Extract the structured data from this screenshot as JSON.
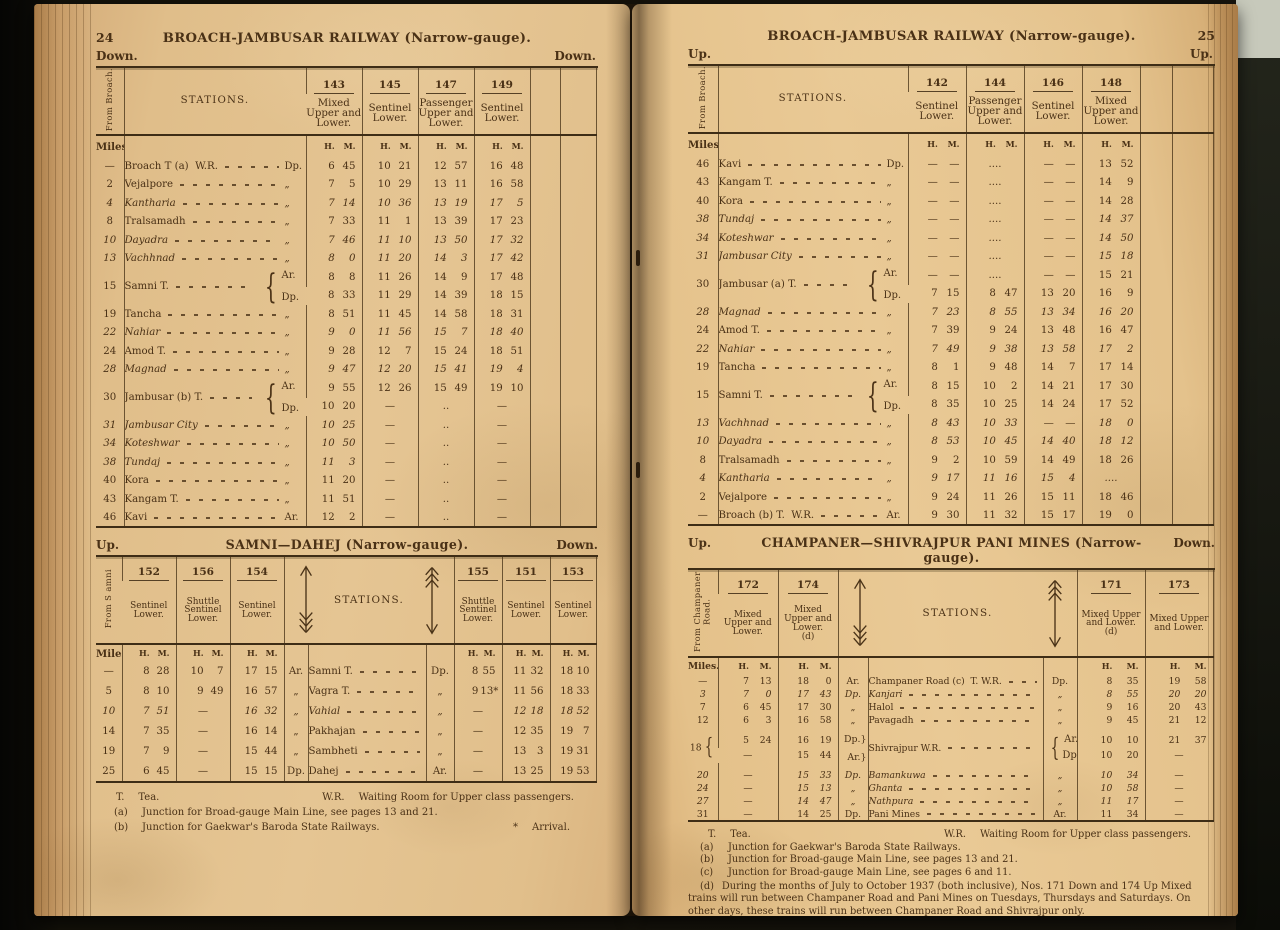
{
  "glyphs": {
    "brace": "{",
    "ditto": "„"
  },
  "left": {
    "page_number": "24",
    "title": "BROACH-JAMBUSAR RAILWAY (Narrow-gauge).",
    "dir_left": "Down.",
    "dir_right": "Down.",
    "main": {
      "corner": "From Broach.",
      "stations_label": "STATIONS.",
      "miles_label": "Miles.",
      "hm": "H. M.",
      "trains": [
        "143",
        "145",
        "147",
        "149"
      ],
      "services": [
        "Mixed Upper and Lower.",
        "Sentinel Lower.",
        "Passenger Upper and Lower.",
        "Sentinel Lower."
      ],
      "rows": [
        {
          "m": "—",
          "s": "Broach T (a)  W.R.",
          "l": "Dp.",
          "t": [
            "6 45",
            "10 21",
            "12 57",
            "16 48"
          ]
        },
        {
          "m": "2",
          "s": "Vejalpore",
          "l": "„",
          "t": [
            "7 5",
            "10 29",
            "13 11",
            "16 58"
          ]
        },
        {
          "m": "4",
          "s": "Kantharia",
          "i": 1,
          "l": "„",
          "t": [
            "7 14",
            "10 36",
            "13 19",
            "17 5"
          ]
        },
        {
          "m": "8",
          "s": "Tralsamadh",
          "l": "„",
          "t": [
            "7 33",
            "11 1",
            "13 39",
            "17 23"
          ]
        },
        {
          "m": "10",
          "s": "Dayadra",
          "i": 1,
          "l": "„",
          "t": [
            "7 46",
            "11 10",
            "13 50",
            "17 32"
          ]
        },
        {
          "m": "13",
          "s": "Vachhnad",
          "i": 1,
          "l": "„",
          "t": [
            "8 0",
            "11 20",
            "14 3",
            "17 42"
          ]
        },
        {
          "m": "15",
          "s": "Samni T.",
          "br": 1,
          "lbls": [
            "Ar.",
            "Dp."
          ],
          "t2": [
            [
              "8 8",
              "11 26",
              "14 9",
              "17 48"
            ],
            [
              "8 33",
              "11 29",
              "14 39",
              "18 15"
            ]
          ]
        },
        {
          "m": "19",
          "s": "Tancha",
          "l": "„",
          "t": [
            "8 51",
            "11 45",
            "14 58",
            "18 31"
          ]
        },
        {
          "m": "22",
          "s": "Nahiar",
          "i": 1,
          "l": "„",
          "t": [
            "9 0",
            "11 56",
            "15 7",
            "18 40"
          ]
        },
        {
          "m": "24",
          "s": "Amod T.",
          "l": "„",
          "t": [
            "9 28",
            "12 7",
            "15 24",
            "18 51"
          ]
        },
        {
          "m": "28",
          "s": "Magnad",
          "i": 1,
          "l": "„",
          "t": [
            "9 47",
            "12 20",
            "15 41",
            "19 4"
          ]
        },
        {
          "m": "30",
          "s": "Jambusar (b) T.",
          "br": 1,
          "lbls": [
            "Ar.",
            "Dp."
          ],
          "t2": [
            [
              "9 55",
              "12 26",
              "15 49",
              "19 10"
            ],
            [
              "10 20",
              "—",
              "..",
              "—"
            ]
          ]
        },
        {
          "m": "31",
          "s": "Jambusar City",
          "i": 1,
          "l": "„",
          "t": [
            "10 25",
            "—",
            "..",
            "—"
          ]
        },
        {
          "m": "34",
          "s": "Koteshwar",
          "i": 1,
          "l": "„",
          "t": [
            "10 50",
            "—",
            "..",
            "—"
          ]
        },
        {
          "m": "38",
          "s": "Tundaj",
          "i": 1,
          "l": "„",
          "t": [
            "11 3",
            "—",
            "..",
            "—"
          ]
        },
        {
          "m": "40",
          "s": "Kora",
          "l": "„",
          "t": [
            "11 20",
            "—",
            "..",
            "—"
          ]
        },
        {
          "m": "43",
          "s": "Kangam T.",
          "l": "„",
          "t": [
            "11 51",
            "—",
            "..",
            "—"
          ]
        },
        {
          "m": "46",
          "s": "Kavi",
          "l": "Ar.",
          "t": [
            "12 2",
            "—",
            "..",
            "—"
          ]
        }
      ]
    },
    "table2": {
      "dir_left": "Up.",
      "title": "SAMNI—DAHEJ (Narrow-gauge).",
      "dir_right": "Down.",
      "corner": "From S amni",
      "stations_label": "STATIONS.",
      "miles_label": "Miles.",
      "hm": "H. M.",
      "trains_left": [
        "152",
        "156",
        "154"
      ],
      "services_left": [
        "Sentinel Lower.",
        "Shuttle Sentinel Lower.",
        "Sentinel Lower."
      ],
      "trains_right": [
        "155",
        "151",
        "153"
      ],
      "services_right": [
        "Shuttle Sentinel Lower.",
        "Sentinel Lower.",
        "Sentinel Lower."
      ],
      "rows": [
        {
          "m": "—",
          "a": "Ar.",
          "s": "Samni T.",
          "d": "Dp.",
          "tl": [
            "8 28",
            "10 7",
            "17 15"
          ],
          "tr": [
            "8 55",
            "11 32",
            "18 10"
          ]
        },
        {
          "m": "5",
          "a": "„",
          "s": "Vagra T.",
          "d": "„",
          "tl": [
            "8 10",
            "9 49",
            "16 57"
          ],
          "tr": [
            "9 13*",
            "11 56",
            "18 33"
          ]
        },
        {
          "m": "10",
          "i": 1,
          "a": "„",
          "s": "Vahial",
          "d": "„",
          "tl": [
            "7 51",
            "—",
            "16 32"
          ],
          "tr": [
            "—",
            "12 18",
            "18 52"
          ]
        },
        {
          "m": "14",
          "a": "„",
          "s": "Pakhajan",
          "d": "„",
          "tl": [
            "7 35",
            "—",
            "16 14"
          ],
          "tr": [
            "—",
            "12 35",
            "19 7"
          ]
        },
        {
          "m": "19",
          "a": "„",
          "s": "Sambheti",
          "d": "„",
          "tl": [
            "7 9",
            "—",
            "15 44"
          ],
          "tr": [
            "—",
            "13 3",
            "19 31"
          ]
        },
        {
          "m": "25",
          "a": "Dp.",
          "s": "Dahej",
          "d": "Ar.",
          "tl": [
            "6 45",
            "—",
            "15 15"
          ],
          "tr": [
            "—",
            "13 25",
            "19 53"
          ]
        }
      ]
    },
    "fn": {
      "t_label": "T.",
      "t_text": "Tea.",
      "wr_label": "W.R.",
      "wr_text": "Waiting Room for Upper class passengers.",
      "notes": [
        {
          "l": "(a)",
          "t": "Junction for Broad-gauge Main Line, see pages 13 and 21."
        },
        {
          "l": "(b)",
          "t": "Junction for Gaekwar's Baroda State Railways."
        }
      ],
      "star_label": "*",
      "star_text": "Arrival."
    }
  },
  "right": {
    "page_number": "25",
    "title": "BROACH-JAMBUSAR RAILWAY (Narrow-gauge).",
    "dir_left": "Up.",
    "dir_right": "Up.",
    "main": {
      "corner": "From Broach.",
      "stations_label": "STATIONS.",
      "miles_label": "Miles.",
      "hm": "H. M.",
      "trains": [
        "142",
        "144",
        "146",
        "148"
      ],
      "services": [
        "Sentinel Lower.",
        "Passenger Upper and Lower.",
        "Sentinel Lower.",
        "Mixed Upper and Lower."
      ],
      "rows": [
        {
          "m": "46",
          "s": "Kavi",
          "l": "Dp.",
          "t": [
            "— —",
            "....",
            "— —",
            "13 52"
          ]
        },
        {
          "m": "43",
          "s": "Kangam T.",
          "l": "„",
          "t": [
            "— —",
            "....",
            "— —",
            "14 9"
          ]
        },
        {
          "m": "40",
          "s": "Kora",
          "l": "„",
          "t": [
            "— —",
            "....",
            "— —",
            "14 28"
          ]
        },
        {
          "m": "38",
          "s": "Tundaj",
          "i": 1,
          "l": "„",
          "t": [
            "— —",
            "....",
            "— —",
            "14 37"
          ]
        },
        {
          "m": "34",
          "s": "Koteshwar",
          "i": 1,
          "l": "„",
          "t": [
            "— —",
            "....",
            "— —",
            "14 50"
          ]
        },
        {
          "m": "31",
          "s": "Jambusar City",
          "i": 1,
          "l": "„",
          "t": [
            "— —",
            "....",
            "— —",
            "15 18"
          ]
        },
        {
          "m": "30",
          "s": "Jambusar (a) T.",
          "br": 1,
          "lbls": [
            "Ar.",
            "Dp."
          ],
          "t2": [
            [
              "— —",
              "....",
              "— —",
              "15 21"
            ],
            [
              "7 15",
              "8 47",
              "13 20",
              "16 9"
            ]
          ]
        },
        {
          "m": "28",
          "s": "Magnad",
          "i": 1,
          "l": "„",
          "t": [
            "7 23",
            "8 55",
            "13 34",
            "16 20"
          ]
        },
        {
          "m": "24",
          "s": "Amod T.",
          "l": "„",
          "t": [
            "7 39",
            "9 24",
            "13 48",
            "16 47"
          ]
        },
        {
          "m": "22",
          "s": "Nahiar",
          "i": 1,
          "l": "„",
          "t": [
            "7 49",
            "9 38",
            "13 58",
            "17 2"
          ]
        },
        {
          "m": "19",
          "s": "Tancha",
          "l": "„",
          "t": [
            "8 1",
            "9 48",
            "14 7",
            "17 14"
          ]
        },
        {
          "m": "15",
          "s": "Samni T.",
          "br": 1,
          "lbls": [
            "Ar.",
            "Dp."
          ],
          "t2": [
            [
              "8 15",
              "10 2",
              "14 21",
              "17 30"
            ],
            [
              "8 35",
              "10 25",
              "14 24",
              "17 52"
            ]
          ]
        },
        {
          "m": "13",
          "s": "Vachhnad",
          "i": 1,
          "l": "„",
          "t": [
            "8 43",
            "10 33",
            "— —",
            "18 0"
          ]
        },
        {
          "m": "10",
          "s": "Dayadra",
          "i": 1,
          "l": "„",
          "t": [
            "8 53",
            "10 45",
            "14 40",
            "18 12"
          ]
        },
        {
          "m": "8",
          "s": "Tralsamadh",
          "l": "„",
          "t": [
            "9 2",
            "10 59",
            "14 49",
            "18 26"
          ]
        },
        {
          "m": "4",
          "s": "Kantharia",
          "i": 1,
          "l": "„",
          "t": [
            "9 17",
            "11 16",
            "15 4",
            "...."
          ]
        },
        {
          "m": "2",
          "s": "Vejalpore",
          "l": "„",
          "t": [
            "9 24",
            "11 26",
            "15 11",
            "18 46"
          ]
        },
        {
          "m": "—",
          "s": "Broach (b) T.  W.R.",
          "l": "Ar.",
          "t": [
            "9 30",
            "11 32",
            "15 17",
            "19 0"
          ]
        }
      ]
    },
    "table2": {
      "dir_left": "Up.",
      "title": "CHAMPANER—SHIVRAJPUR PANI MINES (Narrow-gauge).",
      "dir_right": "Down.",
      "corner": "From Champaner Road.",
      "stations_label": "STATIONS.",
      "miles_label": "Miles.",
      "hm": "H. M.",
      "trains_left": [
        "172",
        "174"
      ],
      "services_left": [
        "Mixed Upper and Lower.",
        "Mixed Upper and Lower.\n(d)"
      ],
      "trains_right": [
        "171",
        "173"
      ],
      "services_right": [
        "Mixed Upper and Lower.\n(d)",
        "Mixed Upper and Lower."
      ],
      "rows": [
        {
          "m": "—",
          "a": "Ar.",
          "s": "Champaner Road (c)  T. W.R.",
          "d": "Dp.",
          "tl": [
            "7 13",
            "18 0"
          ],
          "tr": [
            "8 35",
            "19 58"
          ]
        },
        {
          "m": "3",
          "i": 1,
          "a": "Dp.",
          "s": "Kanjari",
          "d": "„",
          "tl": [
            "7 0",
            "17 43"
          ],
          "tr": [
            "8 55",
            "20 20"
          ]
        },
        {
          "m": "7",
          "a": "„",
          "s": "Halol",
          "d": "„",
          "tl": [
            "6 45",
            "17 30"
          ],
          "tr": [
            "9 16",
            "20 43"
          ]
        },
        {
          "m": "12",
          "a": "„",
          "s": "Pavagadh",
          "d": "„",
          "tl": [
            "6 3",
            "16 58"
          ],
          "tr": [
            "9 45",
            "21 12"
          ]
        },
        {
          "m": "18",
          "br": 1,
          "sp": 1,
          "s": "Shivrajpur W.R.",
          "ll": [
            "Dp.}",
            "Ar.}"
          ],
          "rl": [
            "Ar.",
            "Dp."
          ],
          "tl2": [
            [
              "5 24",
              "16 19"
            ],
            [
              "—",
              "15 44"
            ]
          ],
          "tr2": [
            [
              "10 10",
              "21 37"
            ],
            [
              "10 20",
              "—"
            ]
          ]
        },
        {
          "m": "20",
          "i": 1,
          "sp": 1,
          "a": "Dp.",
          "s": "Bamankuwa",
          "d": "„",
          "tl": [
            "—",
            "15 33"
          ],
          "tr": [
            "10 34",
            "—"
          ]
        },
        {
          "m": "24",
          "i": 1,
          "a": "„",
          "s": "Ghanta",
          "d": "„",
          "tl": [
            "—",
            "15 13"
          ],
          "tr": [
            "10 58",
            "—"
          ]
        },
        {
          "m": "27",
          "i": 1,
          "a": "„",
          "s": "Nathpura",
          "d": "„",
          "tl": [
            "—",
            "14 47"
          ],
          "tr": [
            "11 17",
            "—"
          ]
        },
        {
          "m": "31",
          "a": "Dp.",
          "s": "Pani Mines",
          "d": "Ar.",
          "tl": [
            "—",
            "14 25"
          ],
          "tr": [
            "11 34",
            "—"
          ]
        }
      ]
    },
    "fn": {
      "t_label": "T.",
      "t_text": "Tea.",
      "wr_label": "W.R.",
      "wr_text": "Waiting Room for Upper class passengers.",
      "notes": [
        {
          "l": "(a)",
          "t": "Junction for Gaekwar's Baroda State Railways."
        },
        {
          "l": "(b)",
          "t": "Junction for Broad-gauge Main Line, see pages 13 and 21."
        },
        {
          "l": "(c)",
          "t": "Junction for Broad-gauge Main Line, see pages 6 and 11."
        }
      ],
      "d_label": "(d)",
      "d_text": "During the months of July to October 1937 (both inclusive), Nos. 171 Down and 174 Up Mixed trains will run between Champaner Road and Pani Mines on Tuesdays, Thursdays and Saturdays. On other days, these trains will run between Champaner Road and Shivrajpur only."
    }
  }
}
